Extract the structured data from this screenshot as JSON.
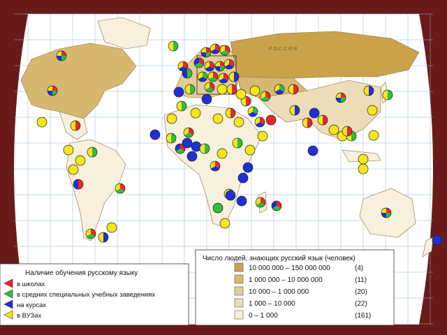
{
  "map": {
    "country_label": "Р О С С И Я",
    "colors": {
      "frame": "#6b1a1a",
      "ocean": "#ffffff",
      "grid": "#8fb7d6",
      "class1": "#c9a24a",
      "class2": "#d6b871",
      "class3": "#e3cc98",
      "class4": "#ecdcb8",
      "class5": "#f6f0dc",
      "red": "#e8282a",
      "green": "#2fbf3a",
      "blue": "#1f2fd6",
      "yellow": "#f5e61a"
    }
  },
  "legend_speakers": {
    "title": "Число людей, знающих русский язык (человек)",
    "rows": [
      {
        "range": "10 000 000 – 150 000 000",
        "count": "(4)",
        "color": "#c9a24a"
      },
      {
        "range": "1 000 000 – 10 000 000",
        "count": "(11)",
        "color": "#d6b871"
      },
      {
        "range": "10 000 – 1 000 000",
        "count": "(20)",
        "color": "#e3cc98"
      },
      {
        "range": "1 000 – 10 000",
        "count": "(22)",
        "color": "#ecdcb8"
      },
      {
        "range": "0 – 1 000",
        "count": "(161)",
        "color": "#f6f0dc"
      }
    ]
  },
  "legend_teaching": {
    "title": "Наличие обучения русскому языку",
    "items": [
      {
        "label": "в школах",
        "color": "#e8282a"
      },
      {
        "label": "в средних специальных учебных заведениях",
        "color": "#2fbf3a"
      },
      {
        "label": "на курсах",
        "color": "#1f2fd6"
      },
      {
        "label": "в ВУЗах",
        "color": "#f5e61a"
      }
    ]
  }
}
